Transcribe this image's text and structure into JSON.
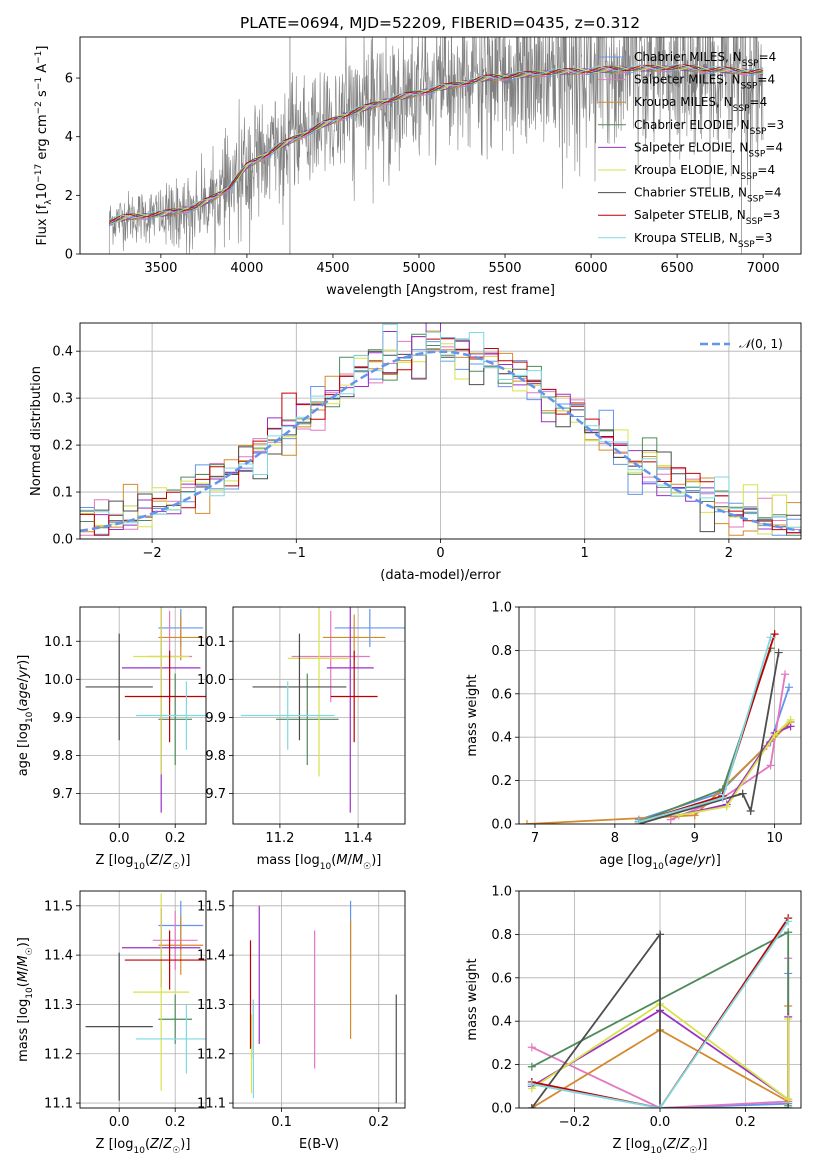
{
  "figure_title": "PLATE=0694, MJD=52209, FIBERID=0435, z=0.312",
  "colors": {
    "Chabrier MILES": "#6495ed",
    "Salpeter MILES": "#e377c2",
    "Kroupa MILES": "#d48a2c",
    "Chabrier ELODIE": "#4f8a5a",
    "Salpeter ELODIE": "#9b30c8",
    "Kroupa ELODIE": "#d7e34a",
    "Chabrier STELIB": "#4d4d4d",
    "Salpeter STELIB": "#c00000",
    "Kroupa STELIB": "#7fd9e0",
    "data": "#808080",
    "normal": "#6495ed"
  },
  "chart_data": [
    {
      "id": "spectrum",
      "type": "line",
      "title": "PLATE=0694, MJD=52209, FIBERID=0435, z=0.312",
      "xlabel": "wavelength [Angstrom, rest frame]",
      "ylabel": "Flux [f_λ 10^-17 erg cm^-2 s^-1 A^-1]",
      "xlim": [
        3030,
        7220
      ],
      "ylim": [
        0,
        7.4
      ],
      "xticks": [
        3500,
        4000,
        4500,
        5000,
        5500,
        6000,
        6500,
        7000
      ],
      "yticks": [
        0,
        2,
        4,
        6
      ],
      "continuum_x": [
        3200,
        3300,
        3500,
        3700,
        3800,
        3900,
        4000,
        4200,
        4400,
        4600,
        4800,
        5000,
        5200,
        5400,
        5600,
        5800,
        6000,
        6200,
        6500,
        6800,
        7000
      ],
      "continuum_y": [
        1.1,
        1.25,
        1.35,
        1.6,
        1.9,
        2.3,
        3.0,
        3.7,
        4.3,
        4.8,
        5.2,
        5.5,
        5.75,
        6.0,
        6.1,
        6.2,
        6.25,
        6.3,
        6.35,
        6.25,
        6.2
      ],
      "legend": [
        {
          "name": "Chabrier MILES",
          "nssp": "4"
        },
        {
          "name": "Salpeter MILES",
          "nssp": "4"
        },
        {
          "name": "Kroupa MILES",
          "nssp": "4"
        },
        {
          "name": "Chabrier ELODIE",
          "nssp": "3"
        },
        {
          "name": "Salpeter ELODIE",
          "nssp": "4"
        },
        {
          "name": "Kroupa ELODIE",
          "nssp": "4"
        },
        {
          "name": "Chabrier STELIB",
          "nssp": "4"
        },
        {
          "name": "Salpeter STELIB",
          "nssp": "3"
        },
        {
          "name": "Kroupa STELIB",
          "nssp": "3"
        }
      ],
      "legend_placement": "upper-right",
      "grid": false
    },
    {
      "id": "residuals",
      "type": "histogram",
      "xlabel": "(data-model)/error",
      "ylabel": "Normed distribution",
      "xlim": [
        -2.5,
        2.5
      ],
      "ylim": [
        0,
        0.46
      ],
      "xticks": [
        -2,
        -1,
        0,
        1,
        2
      ],
      "yticks": [
        0.0,
        0.1,
        0.2,
        0.3,
        0.4
      ],
      "bin_width": 0.1,
      "bin_start": -2.5,
      "reference_curve": {
        "name": "N(0,1)",
        "mean": 0,
        "sigma": 1
      },
      "legend_placement": "upper-right",
      "grid": true
    },
    {
      "id": "age_vs_Z",
      "type": "errorbar",
      "xlabel": "Z [log10(Z/Z☉)]",
      "ylabel": "age [log10(age/yr)]",
      "xlim": [
        -0.14,
        0.31
      ],
      "ylim": [
        9.62,
        10.19
      ],
      "xticks": [
        0.0,
        0.2
      ],
      "yticks": [
        9.7,
        9.8,
        9.9,
        10.0,
        10.1
      ],
      "points": [
        {
          "model": "Chabrier MILES",
          "x": 0.22,
          "xerr": 0.08,
          "y": 10.135,
          "yerr": 0.05
        },
        {
          "model": "Salpeter MILES",
          "x": 0.18,
          "xerr": 0.08,
          "y": 10.06,
          "yerr": 0.12
        },
        {
          "model": "Kroupa MILES",
          "x": 0.22,
          "xerr": 0.08,
          "y": 10.11,
          "yerr": 0.06
        },
        {
          "model": "Chabrier ELODIE",
          "x": 0.2,
          "xerr": 0.06,
          "y": 9.895,
          "yerr": 0.12
        },
        {
          "model": "Salpeter ELODIE",
          "x": 0.15,
          "xerr": 0.14,
          "y": 10.03,
          "yerr": 0.38
        },
        {
          "model": "Kroupa ELODIE",
          "x": 0.15,
          "xerr": 0.1,
          "y": 10.06,
          "yerr": 0.31
        },
        {
          "model": "Chabrier STELIB",
          "x": 0.0,
          "xerr": 0.12,
          "y": 9.98,
          "yerr": 0.14
        },
        {
          "model": "Salpeter STELIB",
          "x": 0.18,
          "xerr": 0.16,
          "y": 9.955,
          "yerr": 0.12
        },
        {
          "model": "Kroupa STELIB",
          "x": 0.24,
          "xerr": 0.18,
          "y": 9.905,
          "yerr": 0.09
        }
      ],
      "grid": true
    },
    {
      "id": "age_vs_mass",
      "type": "errorbar",
      "xlabel": "mass [log10(M/M☉)]",
      "ylabel": "",
      "xlim": [
        11.08,
        11.52
      ],
      "ylim": [
        9.62,
        10.19
      ],
      "xticks": [
        11.2,
        11.4
      ],
      "yticks": [
        9.7,
        9.8,
        9.9,
        10.0,
        10.1
      ],
      "points": [
        {
          "model": "Chabrier MILES",
          "x": 11.43,
          "xerr": 0.09,
          "y": 10.135,
          "yerr": 0.05
        },
        {
          "model": "Salpeter MILES",
          "x": 11.33,
          "xerr": 0.1,
          "y": 10.06,
          "yerr": 0.12
        },
        {
          "model": "Kroupa MILES",
          "x": 11.39,
          "xerr": 0.08,
          "y": 10.11,
          "yerr": 0.06
        },
        {
          "model": "Chabrier ELODIE",
          "x": 11.27,
          "xerr": 0.08,
          "y": 9.895,
          "yerr": 0.12
        },
        {
          "model": "Salpeter ELODIE",
          "x": 11.38,
          "xerr": 0.06,
          "y": 10.03,
          "yerr": 0.38
        },
        {
          "model": "Kroupa ELODIE",
          "x": 11.3,
          "xerr": 0.08,
          "y": 10.055,
          "yerr": 0.31
        },
        {
          "model": "Chabrier STELIB",
          "x": 11.25,
          "xerr": 0.12,
          "y": 9.98,
          "yerr": 0.14
        },
        {
          "model": "Salpeter STELIB",
          "x": 11.39,
          "xerr": 0.06,
          "y": 9.955,
          "yerr": 0.12
        },
        {
          "model": "Kroupa STELIB",
          "x": 11.22,
          "xerr": 0.12,
          "y": 9.905,
          "yerr": 0.09
        }
      ],
      "grid": true
    },
    {
      "id": "weight_vs_age",
      "type": "line",
      "xlabel": "age [log10(age/yr)]",
      "ylabel": "mass weight",
      "xlim": [
        6.8,
        10.33
      ],
      "ylim": [
        0,
        1.0
      ],
      "xticks": [
        7,
        8,
        9,
        10
      ],
      "yticks": [
        0.0,
        0.2,
        0.4,
        0.6,
        0.8,
        1.0
      ],
      "series": [
        {
          "model": "Chabrier MILES",
          "x": [
            8.3,
            9.3,
            9.95,
            10.18
          ],
          "y": [
            0.02,
            0.14,
            0.38,
            0.63
          ]
        },
        {
          "model": "Salpeter MILES",
          "x": [
            8.7,
            9.35,
            9.95,
            10.13
          ],
          "y": [
            0.02,
            0.12,
            0.27,
            0.69
          ]
        },
        {
          "model": "Kroupa MILES",
          "x": [
            6.9,
            9.0,
            9.9,
            10.2
          ],
          "y": [
            0.0,
            0.04,
            0.36,
            0.47
          ]
        },
        {
          "model": "Chabrier ELODIE",
          "x": [
            8.3,
            9.35,
            9.95
          ],
          "y": [
            0.01,
            0.16,
            0.81
          ]
        },
        {
          "model": "Salpeter ELODIE",
          "x": [
            8.8,
            9.4,
            10.0,
            10.2
          ],
          "y": [
            0.04,
            0.09,
            0.42,
            0.45
          ]
        },
        {
          "model": "Kroupa ELODIE",
          "x": [
            8.8,
            9.4,
            10.0,
            10.2
          ],
          "y": [
            0.04,
            0.08,
            0.41,
            0.48
          ]
        },
        {
          "model": "Chabrier STELIB",
          "x": [
            8.3,
            9.6,
            9.7,
            10.05
          ],
          "y": [
            0.0,
            0.14,
            0.06,
            0.79
          ]
        },
        {
          "model": "Salpeter STELIB",
          "x": [
            8.3,
            9.35,
            10.0
          ],
          "y": [
            0.01,
            0.13,
            0.875
          ]
        },
        {
          "model": "Kroupa STELIB",
          "x": [
            8.3,
            9.35,
            9.95
          ],
          "y": [
            0.01,
            0.12,
            0.86
          ]
        }
      ],
      "grid": true
    },
    {
      "id": "mass_vs_Z",
      "type": "errorbar",
      "xlabel": "Z [log10(Z/Z☉)]",
      "ylabel": "mass [log10(M/M☉)]",
      "xlim": [
        -0.14,
        0.31
      ],
      "ylim": [
        11.09,
        11.53
      ],
      "xticks": [
        0.0,
        0.2
      ],
      "yticks": [
        11.1,
        11.2,
        11.3,
        11.4,
        11.5
      ],
      "points": [
        {
          "model": "Chabrier MILES",
          "x": 0.22,
          "xerr": 0.08,
          "y": 11.46,
          "yerr": 0.05
        },
        {
          "model": "Salpeter MILES",
          "x": 0.2,
          "xerr": 0.08,
          "y": 11.43,
          "yerr": 0.06
        },
        {
          "model": "Kroupa MILES",
          "x": 0.22,
          "xerr": 0.08,
          "y": 11.42,
          "yerr": 0.06
        },
        {
          "model": "Chabrier ELODIE",
          "x": 0.2,
          "xerr": 0.06,
          "y": 11.27,
          "yerr": 0.05
        },
        {
          "model": "Salpeter ELODIE",
          "x": 0.15,
          "xerr": 0.14,
          "y": 11.415,
          "yerr": 0.08
        },
        {
          "model": "Kroupa ELODIE",
          "x": 0.15,
          "xerr": 0.1,
          "y": 11.325,
          "yerr": 0.2
        },
        {
          "model": "Chabrier STELIB",
          "x": 0.0,
          "xerr": 0.12,
          "y": 11.255,
          "yerr": 0.15
        },
        {
          "model": "Salpeter STELIB",
          "x": 0.18,
          "xerr": 0.16,
          "y": 11.39,
          "yerr": 0.06
        },
        {
          "model": "Kroupa STELIB",
          "x": 0.24,
          "xerr": 0.18,
          "y": 11.23,
          "yerr": 0.07
        }
      ],
      "grid": true
    },
    {
      "id": "mass_vs_ebv",
      "type": "errorbar",
      "xlabel": "E(B-V)",
      "ylabel": "",
      "xlim": [
        0.05,
        0.227
      ],
      "ylim": [
        11.09,
        11.53
      ],
      "xticks": [
        0.1,
        0.2
      ],
      "yticks": [
        11.1,
        11.2,
        11.3,
        11.4,
        11.5
      ],
      "points": [
        {
          "model": "Chabrier MILES",
          "x": 0.171,
          "y": 11.45,
          "yerr": 0.06
        },
        {
          "model": "Salpeter MILES",
          "x": 0.134,
          "y": 11.31,
          "yerr": 0.14
        },
        {
          "model": "Kroupa MILES",
          "x": 0.171,
          "y": 11.35,
          "yerr": 0.12
        },
        {
          "model": "Chabrier ELODIE",
          "x": 0.071,
          "y": 11.25,
          "yerr": 0.06
        },
        {
          "model": "Salpeter ELODIE",
          "x": 0.077,
          "y": 11.36,
          "yerr": 0.14
        },
        {
          "model": "Kroupa ELODIE",
          "x": 0.069,
          "y": 11.2,
          "yerr": 0.08
        },
        {
          "model": "Chabrier STELIB",
          "x": 0.218,
          "y": 11.21,
          "yerr": 0.11
        },
        {
          "model": "Salpeter STELIB",
          "x": 0.068,
          "y": 11.32,
          "yerr": 0.11
        },
        {
          "model": "Kroupa STELIB",
          "x": 0.071,
          "y": 11.21,
          "yerr": 0.1
        }
      ],
      "grid": true
    },
    {
      "id": "weight_vs_Z",
      "type": "line",
      "xlabel": "Z [log10(Z/Z☉)]",
      "ylabel": "mass weight",
      "xlim": [
        -0.33,
        0.33
      ],
      "ylim": [
        0,
        1.0
      ],
      "xticks": [
        -0.2,
        0.0,
        0.2
      ],
      "yticks": [
        0.0,
        0.2,
        0.4,
        0.6,
        0.8,
        1.0
      ],
      "series": [
        {
          "model": "Chabrier MILES",
          "x": [
            -0.3,
            0.0,
            0.3,
            0.3
          ],
          "y": [
            0.11,
            0.0,
            0.02,
            0.62
          ]
        },
        {
          "model": "Salpeter MILES",
          "x": [
            -0.3,
            0.0,
            0.3,
            0.3
          ],
          "y": [
            0.28,
            0.0,
            0.03,
            0.69
          ]
        },
        {
          "model": "Kroupa MILES",
          "x": [
            -0.3,
            0.0,
            0.3,
            0.3
          ],
          "y": [
            0.0,
            0.36,
            0.03,
            0.47
          ]
        },
        {
          "model": "Chabrier ELODIE",
          "x": [
            -0.3,
            0.3,
            0.3
          ],
          "y": [
            0.19,
            0.81,
            0.01
          ]
        },
        {
          "model": "Salpeter ELODIE",
          "x": [
            -0.3,
            0.0,
            0.3,
            0.3
          ],
          "y": [
            0.1,
            0.45,
            0.04,
            0.42
          ]
        },
        {
          "model": "Kroupa ELODIE",
          "x": [
            -0.3,
            0.0,
            0.3,
            0.3
          ],
          "y": [
            0.09,
            0.48,
            0.04,
            0.41
          ]
        },
        {
          "model": "Chabrier STELIB",
          "x": [
            -0.3,
            0.0,
            0.0,
            0.3
          ],
          "y": [
            0.0,
            0.8,
            0.0,
            0.0
          ]
        },
        {
          "model": "Salpeter STELIB",
          "x": [
            -0.3,
            0.0,
            0.3
          ],
          "y": [
            0.12,
            0.0,
            0.875
          ]
        },
        {
          "model": "Kroupa STELIB",
          "x": [
            -0.3,
            0.0,
            0.3
          ],
          "y": [
            0.11,
            0.0,
            0.86
          ]
        }
      ],
      "grid": true
    }
  ]
}
